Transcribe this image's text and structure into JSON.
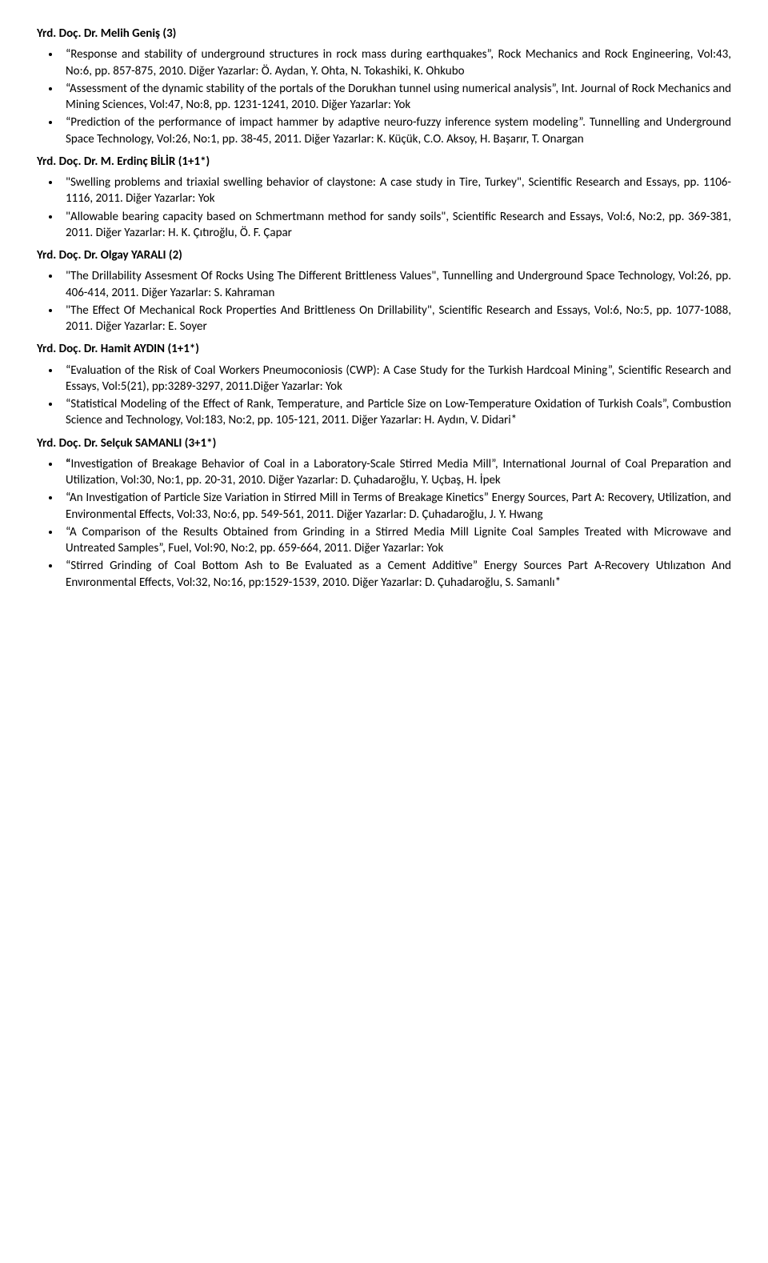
{
  "sections": [
    {
      "heading": "Yrd. Doç. Dr. Melih Geniş (3)",
      "items": [
        {
          "quote": "curly",
          "title": "Response and stability of underground structures in rock mass during earthquakes",
          "rest": ", Rock Mechanics and Rock Engineering, Vol:43, No:6, pp. 857-875, 2010. Diğer Yazarlar: Ö. Aydan, Y. Ohta, N. Tokashiki, K. Ohkubo"
        },
        {
          "quote": "curly",
          "title": "Assessment of the dynamic stability of the portals of the Dorukhan tunnel using numerical analysis",
          "rest": ", Int. Journal of Rock Mechanics and Mining Sciences, Vol:47, No:8, pp. 1231-1241, 2010. Diğer Yazarlar: Yok"
        },
        {
          "quote": "curly",
          "title": "Prediction of the performance of impact hammer by adaptive neuro-fuzzy inference system modeling",
          "rest": ". Tunnelling and Underground Space Technology, Vol:26, No:1, pp. 38-45, 2011. Diğer Yazarlar: K. Küçük, C.O. Aksoy, H. Başarır, T. Onargan"
        }
      ]
    },
    {
      "heading": "Yrd. Doç. Dr. M. Erdinç BİLİR (1+1*)",
      "items": [
        {
          "quote": "straight",
          "title": "Swelling problems and triaxial swelling behavior of claystone: A case study in Tire, Turkey",
          "rest": ", Scientific Research and Essays, pp. 1106-1116, 2011. Diğer Yazarlar:  Yok"
        },
        {
          "quote": "straight",
          "title": "Allowable bearing capacity based on Schmertmann method for sandy soils",
          "rest": ", Scientific Research and Essays, Vol:6, No:2, pp. 369-381, 2011. Diğer Yazarlar:  H. K. Çıtıroğlu, Ö. F. Çapar"
        }
      ]
    },
    {
      "heading": "Yrd. Doç. Dr. Olgay YARALI (2)",
      "items": [
        {
          "quote": "straight",
          "title": "The Drillability Assesment Of Rocks Using The Different Brittleness Values",
          "rest": ", Tunnelling and Underground Space Technology, Vol:26, pp. 406-414, 2011. Diğer Yazarlar: S. Kahraman"
        },
        {
          "quote": "straight",
          "title": "The Effect Of Mechanical Rock Properties And Brittleness On Drillability",
          "rest": ", Scientific Research and Essays, Vol:6, No:5, pp. 1077-1088, 2011. Diğer Yazarlar: E. Soyer"
        }
      ]
    },
    {
      "heading": "Yrd. Doç. Dr. Hamit AYDIN (1+1*)",
      "items": [
        {
          "quote": "curly",
          "title": "Evaluation of the Risk of Coal Workers Pneumoconiosis (CWP): A Case Study for the Turkish Hardcoal Mining",
          "rest": ", Scientific Research and Essays, Vol:5(21), pp:3289-3297, 2011.Diğer Yazarlar: Yok"
        },
        {
          "quote": "curly",
          "title": "Statistical Modeling of the Effect of Rank, Temperature, and Particle Size on Low-Temperature Oxidation of Turkish Coals",
          "rest": ", Combustion Science and Technology, Vol:183, No:2, pp. 105-121, 2011. Diğer Yazarlar: H. Aydın, V. Didari*"
        }
      ]
    },
    {
      "heading": "Yrd. Doç. Dr. Selçuk SAMANLI (3+1*)",
      "items": [
        {
          "quote": "curlybold",
          "title": "Investigation of Breakage Behavior of Coal in a Laboratory-Scale Stirred Media Mill",
          "rest": ", International Journal of Coal Preparation and Utilization, Vol:30, No:1, pp. 20-31, 2010. Diğer Yazarlar: D. Çuhadaroğlu, Y. Uçbaş, H. İpek"
        },
        {
          "quote": "curly",
          "title": "An Investigation of Particle Size Variation in Stirred Mill in Terms of Breakage Kinetics",
          "rest": " Energy Sources, Part A: Recovery, Utilization, and Environmental Effects, Vol:33, No:6, pp. 549-561, 2011. Diğer Yazarlar: D. Çuhadaroğlu, J. Y. Hwang"
        },
        {
          "quote": "curly",
          "title": "A Comparison of the Results Obtained from Grinding in a Stirred Media Mill Lignite Coal Samples Treated with Microwave and Untreated Samples",
          "rest": ", Fuel, Vol:90, No:2, pp. 659-664, 2011. Diğer Yazarlar: Yok"
        },
        {
          "quote": "curly",
          "title": "Stirred Grinding of Coal Bottom Ash to Be Evaluated as a Cement Additive",
          "rest": " Energy Sources Part A-Recovery Utılızatıon And Envıronmental Effects, Vol:32, No:16, pp:1529-1539, 2010. Diğer Yazarlar: D. Çuhadaroğlu, S. Samanlı*"
        }
      ]
    }
  ]
}
